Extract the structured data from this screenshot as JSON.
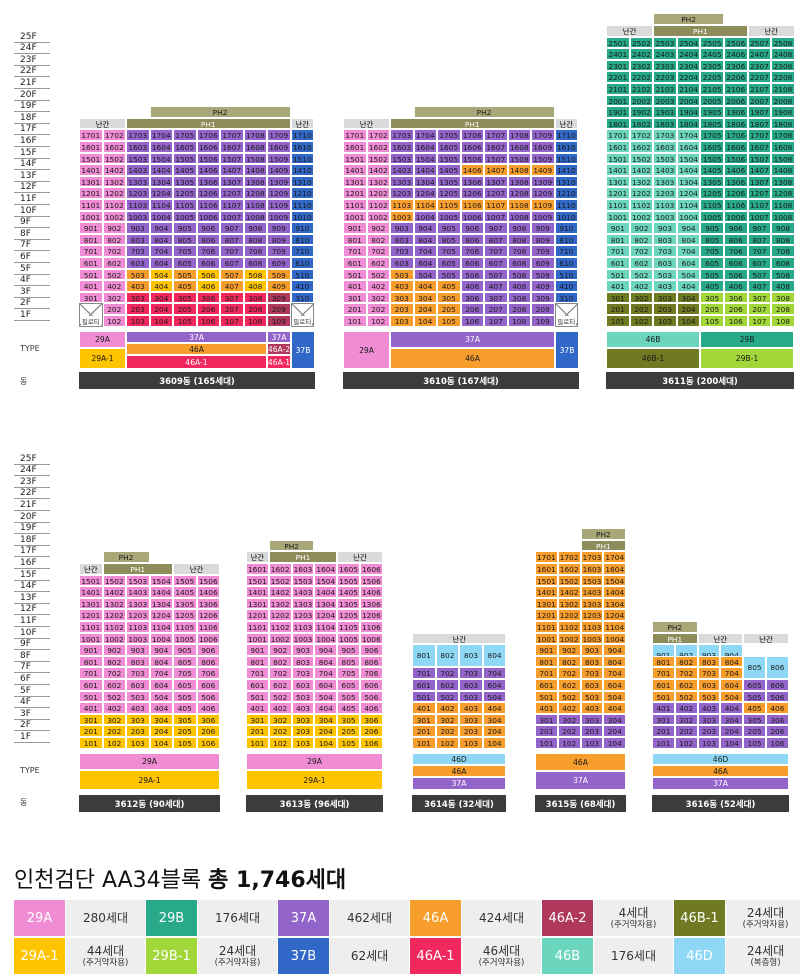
{
  "colors": {
    "29A": "#f08cd3",
    "29A-1": "#ffc400",
    "29B": "#27a98a",
    "29B-1": "#a2d73a",
    "37A": "#9364ca",
    "37B": "#3168c7",
    "46A": "#f79d2c",
    "46A-1": "#f1285e",
    "46A-2": "#b1385d",
    "46B": "#6bd6bd",
    "46B-1": "#6f7a22",
    "46D": "#8ed7f5",
    "core": "#dadada",
    "ph": "#8f8c5c",
    "ph2": "#a9a777"
  },
  "floors": [
    "25F",
    "24F",
    "23F",
    "22F",
    "21F",
    "20F",
    "19F",
    "18F",
    "17F",
    "16F",
    "15F",
    "14F",
    "13F",
    "12F",
    "11F",
    "10F",
    "9F",
    "8F",
    "7F",
    "6F",
    "5F",
    "4F",
    "3F",
    "2F",
    "1F"
  ],
  "labels": {
    "type": "TYPE",
    "dong": "동",
    "core": "난간",
    "ph1": "PH1",
    "ph2": "PH2",
    "piloti": "필로티"
  },
  "buildings": [
    {
      "id": "3609",
      "label": "3609동 (165세대)"
    },
    {
      "id": "3610",
      "label": "3610동 (167세대)"
    },
    {
      "id": "3611",
      "label": "3611동 (200세대)"
    },
    {
      "id": "3612",
      "label": "3612동 (90세대)"
    },
    {
      "id": "3613",
      "label": "3613동 (96세대)"
    },
    {
      "id": "3614",
      "label": "3614동 (32세대)"
    },
    {
      "id": "3615",
      "label": "3615동 (68세대)"
    },
    {
      "id": "3616",
      "label": "3616동 (52세대)"
    }
  ],
  "title": {
    "prefix": "인천검단 AA34블록 ",
    "bold": "총 1,746세대"
  },
  "legend": [
    {
      "type": "29A",
      "count": "280세대",
      "note": ""
    },
    {
      "type": "29B",
      "count": "176세대",
      "note": ""
    },
    {
      "type": "37A",
      "count": "462세대",
      "note": ""
    },
    {
      "type": "46A",
      "count": "424세대",
      "note": ""
    },
    {
      "type": "46A-2",
      "count": "4세대",
      "note": "(주거약자용)"
    },
    {
      "type": "46B-1",
      "count": "24세대",
      "note": "(주거약자용)"
    },
    {
      "type": "29A-1",
      "count": "44세대",
      "note": "(주거약자용)"
    },
    {
      "type": "29B-1",
      "count": "24세대",
      "note": "(주거약자용)"
    },
    {
      "type": "37B",
      "count": "62세대",
      "note": ""
    },
    {
      "type": "46A-1",
      "count": "46세대",
      "note": "(주거약자용)"
    },
    {
      "type": "46B",
      "count": "176세대",
      "note": ""
    },
    {
      "type": "46D",
      "count": "24세대",
      "note": "(복층형)"
    }
  ]
}
